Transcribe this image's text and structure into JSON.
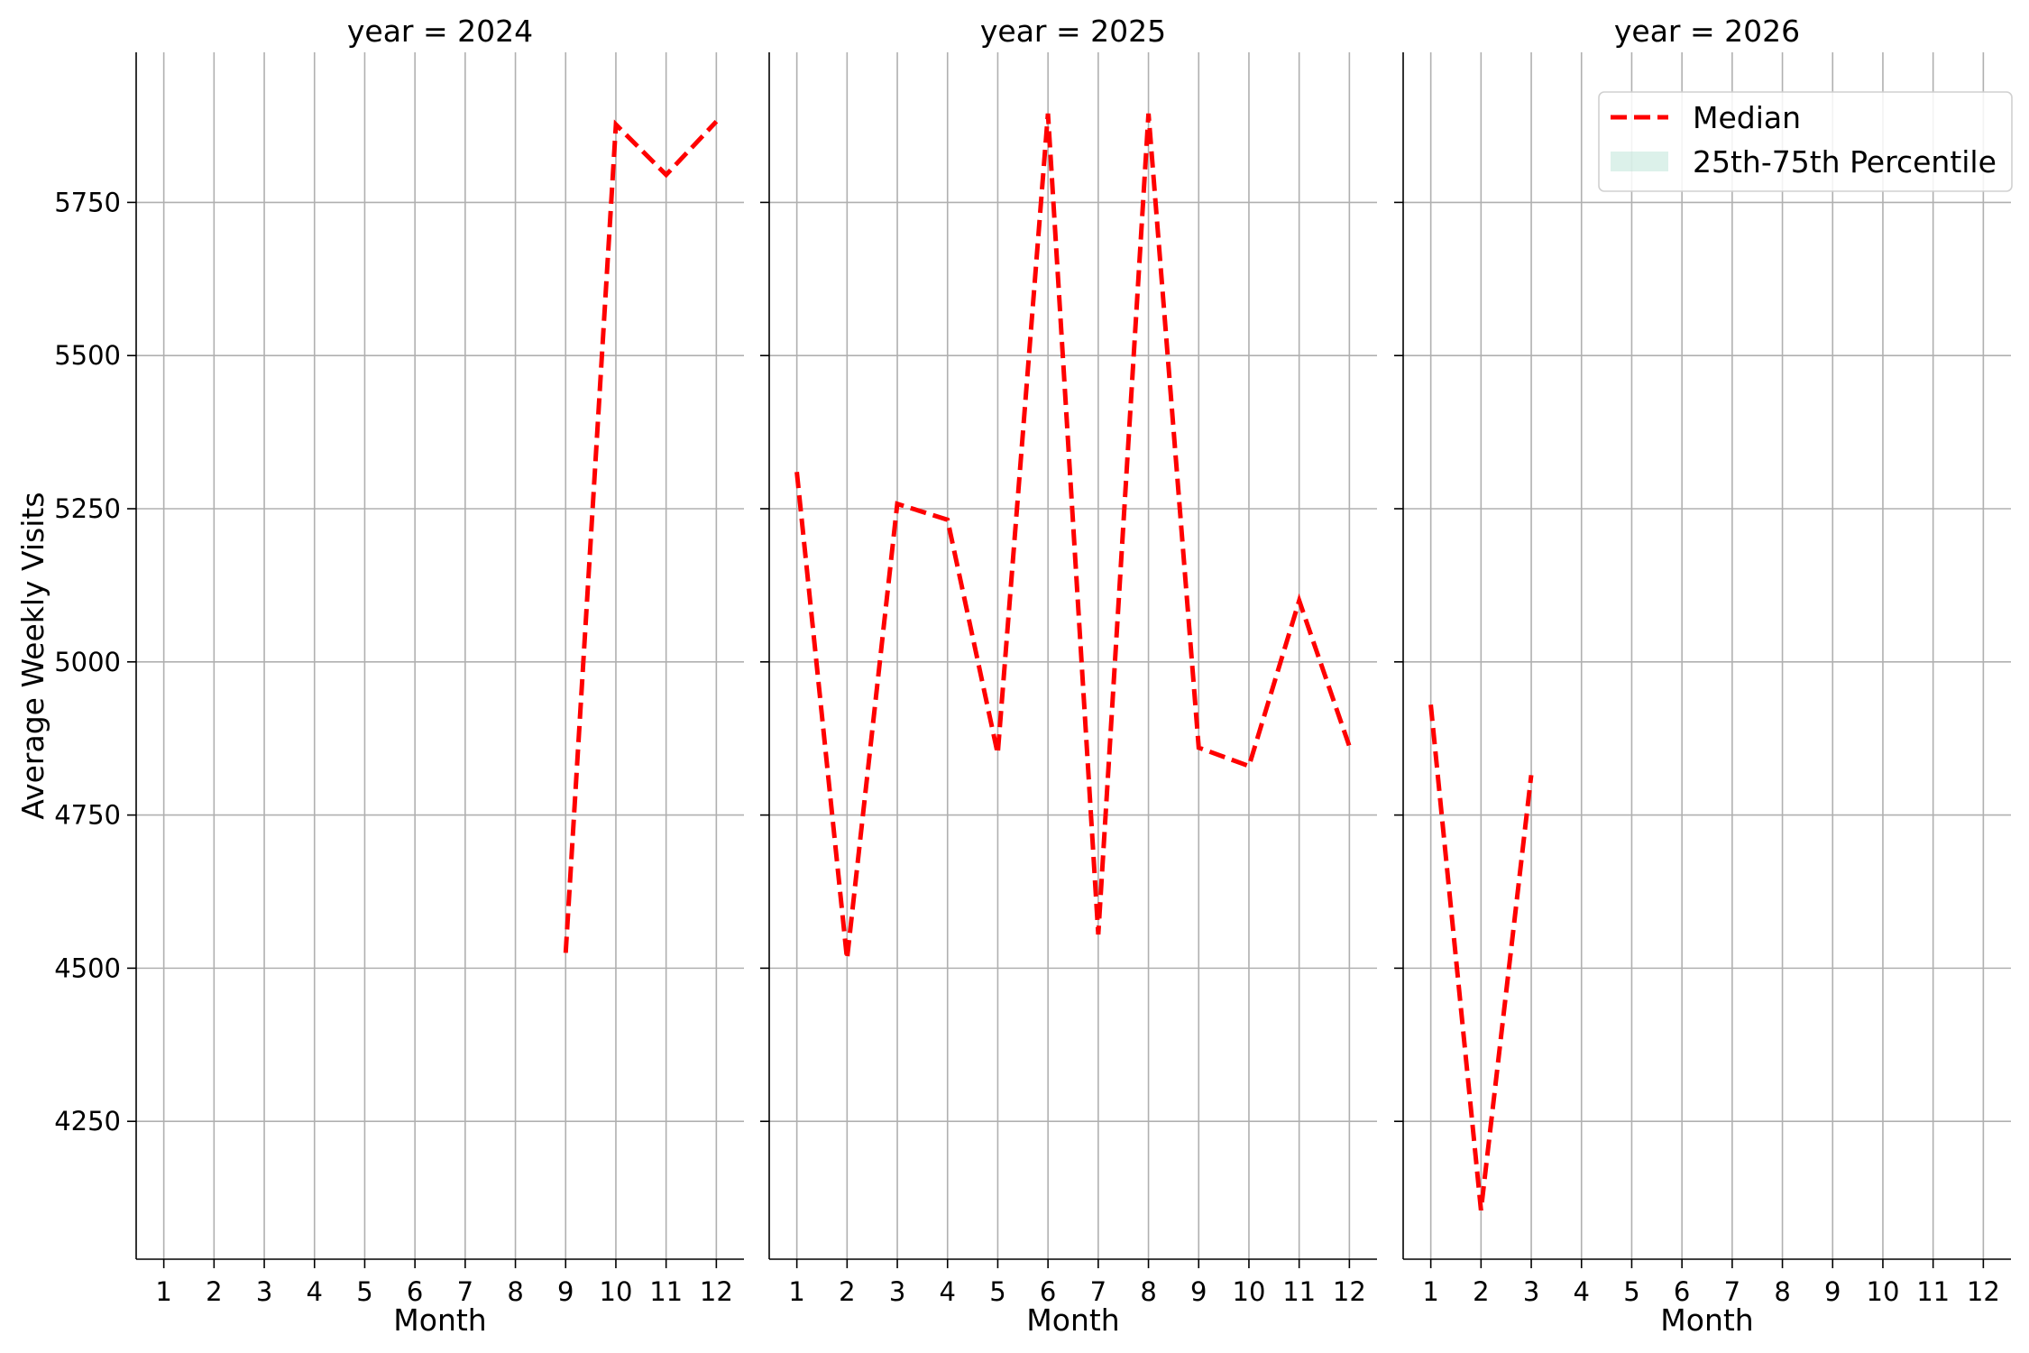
{
  "chart_data": {
    "type": "line",
    "facet_column": "year",
    "ylabel": "Average Weekly Visits",
    "ylim": [
      4025,
      5995
    ],
    "yticks": [
      4250,
      4500,
      4750,
      5000,
      5250,
      5500,
      5750
    ],
    "xticks": [
      1,
      2,
      3,
      4,
      5,
      6,
      7,
      8,
      9,
      10,
      11,
      12
    ],
    "xlim": [
      0.45,
      12.55
    ],
    "grid": true,
    "legend": {
      "placement": "upper-right",
      "panel": 2,
      "entries": [
        {
          "label": "Median",
          "style": "dashed-line",
          "color": "#ff0000"
        },
        {
          "label": "25th-75th Percentile",
          "style": "filled-band",
          "color": "#a8dccb"
        }
      ]
    },
    "colors": {
      "median": "#ff0000",
      "band": "#a8dccb"
    },
    "panels": [
      {
        "title": "year = 2024",
        "xlabel": "Month",
        "median": {
          "x": [
            9,
            10,
            11,
            12
          ],
          "y": [
            4525,
            5877,
            5795,
            5882
          ]
        }
      },
      {
        "title": "year = 2025",
        "xlabel": "Month",
        "median": {
          "x": [
            1,
            2,
            3,
            4,
            5,
            6,
            7,
            8,
            9,
            10,
            11,
            12
          ],
          "y": [
            5310,
            4515,
            5258,
            5232,
            4850,
            5895,
            4555,
            5895,
            4860,
            4830,
            5100,
            4862
          ]
        }
      },
      {
        "title": "year = 2026",
        "xlabel": "Month",
        "median": {
          "x": [
            1,
            2,
            3
          ],
          "y": [
            4930,
            4105,
            4815
          ]
        }
      }
    ]
  }
}
